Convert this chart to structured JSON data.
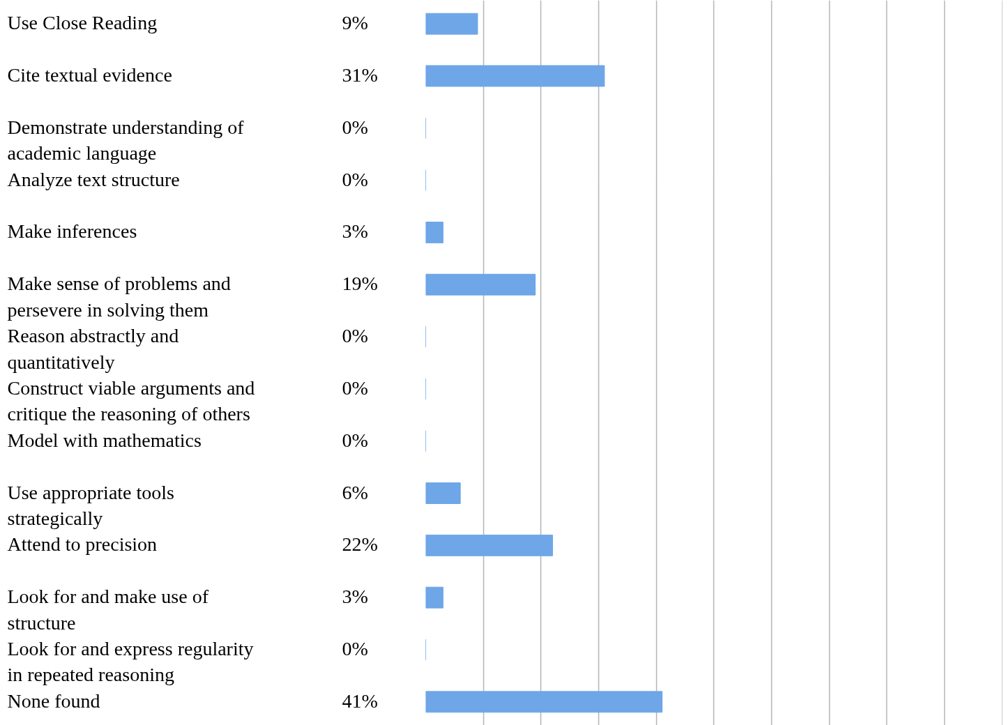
{
  "chart_data": {
    "type": "bar",
    "orientation": "horizontal",
    "categories": [
      "Use Close Reading",
      "Cite textual evidence",
      "Demonstrate understanding of academic language",
      "Analyze text structure",
      "Make inferences",
      "Make sense of problems and persevere in solving them",
      "Reason abstractly and quantitatively",
      "Construct viable arguments and critique the reasoning of others",
      "Model with mathematics",
      "Use appropriate tools strategically",
      "Attend to precision",
      "Look for and make use of structure",
      "Look for and express regularity in repeated reasoning",
      "None found"
    ],
    "values": [
      9,
      31,
      0,
      0,
      3,
      19,
      0,
      0,
      0,
      6,
      22,
      3,
      0,
      41
    ],
    "value_labels": [
      "9%",
      "31%",
      "0%",
      "0%",
      "3%",
      "19%",
      "0%",
      "0%",
      "0%",
      "6%",
      "22%",
      "3%",
      "0%",
      "41%"
    ],
    "color": "#6ea6e8",
    "grid": "x"
  }
}
